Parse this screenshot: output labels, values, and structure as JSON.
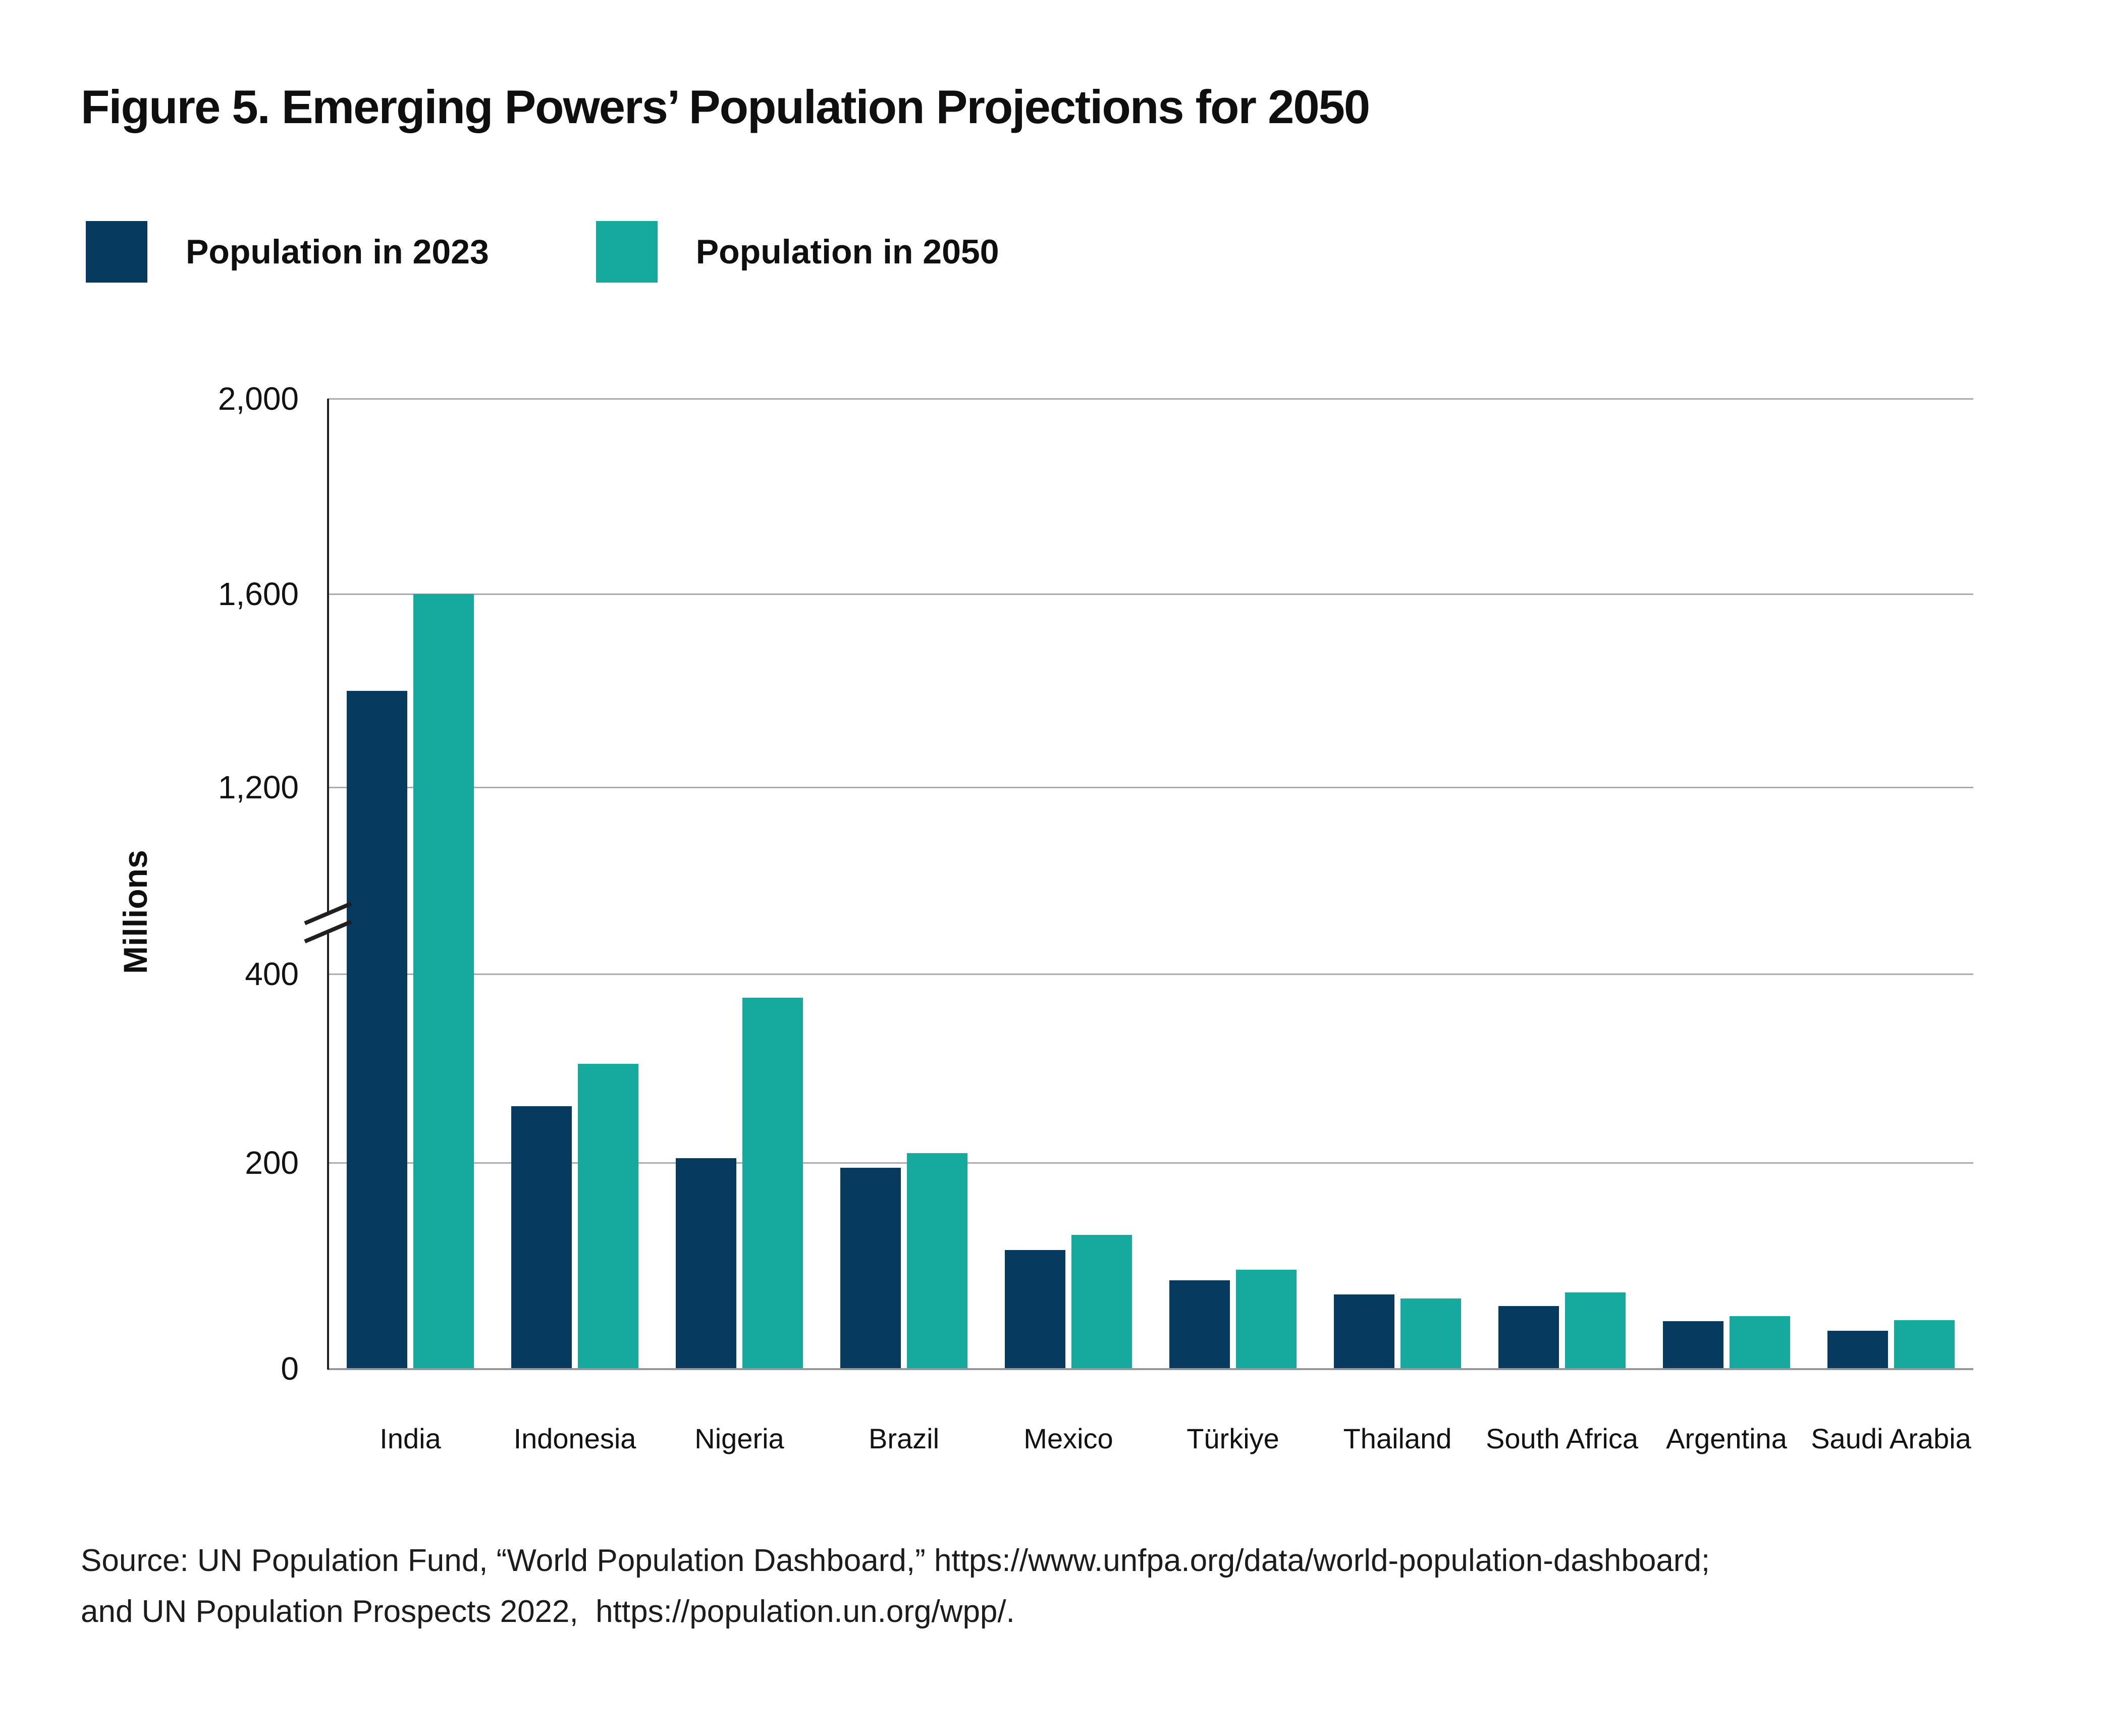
{
  "title": "Figure 5. Emerging Powers’ Population Projections for 2050",
  "legend": {
    "items": [
      {
        "label": "Population in 2023",
        "color": "#063a5e"
      },
      {
        "label": "Population in 2050",
        "color": "#16a99e"
      }
    ]
  },
  "chart_data": {
    "type": "bar",
    "title": "Figure 5. Emerging Powers’ Population Projections for 2050",
    "xlabel": "",
    "ylabel": "Millions",
    "unit": "millions of people",
    "categories": [
      "India",
      "Indonesia",
      "Nigeria",
      "Brazil",
      "Mexico",
      "Türkiye",
      "Thailand",
      "South Africa",
      "Argentina",
      "Saudi Arabia"
    ],
    "series": [
      {
        "name": "Population in 2023",
        "color": "#063a5e",
        "values": [
          1400,
          260,
          205,
          195,
          115,
          86,
          72,
          61,
          46,
          37
        ]
      },
      {
        "name": "Population in 2050",
        "color": "#16a99e",
        "values": [
          1600,
          305,
          375,
          210,
          130,
          96,
          68,
          74,
          51,
          47
        ]
      }
    ],
    "y_ticks": [
      {
        "value": 0,
        "label": "0"
      },
      {
        "value": 200,
        "label": "200"
      },
      {
        "value": 400,
        "label": "400"
      },
      {
        "value": 1200,
        "label": "1,200"
      },
      {
        "value": 1600,
        "label": "1,600"
      },
      {
        "value": 2000,
        "label": "2,000"
      }
    ],
    "ylim": [
      0,
      2000
    ],
    "axis_break": {
      "between": [
        400,
        1200
      ]
    },
    "grid": "horizontal",
    "legend_position": "top-left"
  },
  "source": {
    "line1": "Source: UN Population Fund, “World Population Dashboard,” https://www.unfpa.org/data/world-population-dashboard;",
    "line2": "and UN Population Prospects 2022,  https://population.un.org/wpp/."
  },
  "colors": {
    "background": "#ffffff",
    "bar_2023": "#063a5e",
    "bar_2050": "#16a99e",
    "gridline": "#ababaf",
    "axis_line": "#231f20",
    "text": "#121212"
  }
}
